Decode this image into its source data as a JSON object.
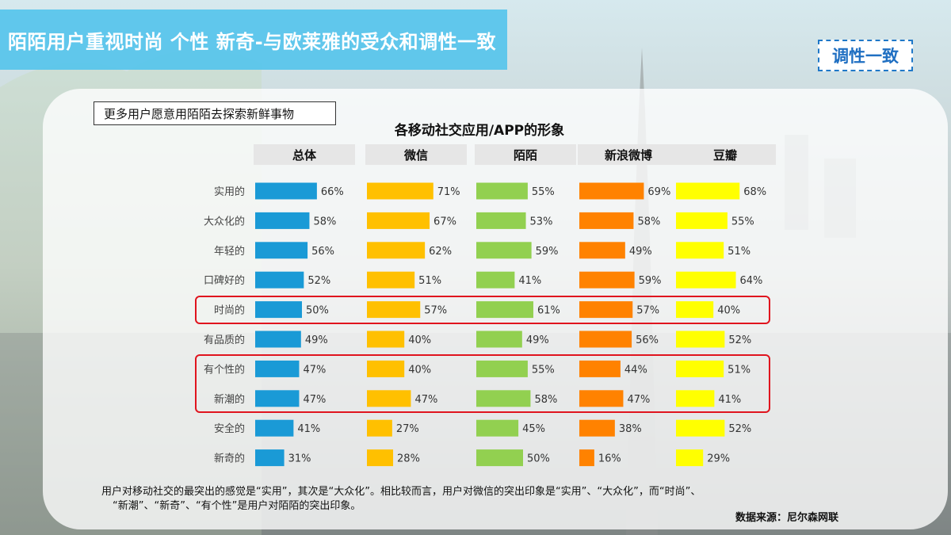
{
  "header": {
    "title": "陌陌用户重视时尚 个性 新奇-与欧莱雅的受众和调性一致",
    "tag": "调性一致"
  },
  "subtitle": "更多用户愿意用陌陌去探索新鲜事物",
  "chart_data": {
    "type": "bar",
    "title": "各移动社交应用/APP的形象",
    "categories": [
      "实用的",
      "大众化的",
      "年轻的",
      "口碑好的",
      "时尚的",
      "有品质的",
      "有个性的",
      "新潮的",
      "安全的",
      "新奇的"
    ],
    "series": [
      {
        "name": "总体",
        "color": "#1a9ad6",
        "values": [
          66,
          58,
          56,
          52,
          50,
          49,
          47,
          47,
          41,
          31
        ]
      },
      {
        "name": "微信",
        "color": "#ffc000",
        "values": [
          71,
          67,
          62,
          51,
          57,
          40,
          40,
          47,
          27,
          28
        ]
      },
      {
        "name": "陌陌",
        "color": "#92d050",
        "values": [
          55,
          53,
          59,
          41,
          61,
          49,
          55,
          58,
          45,
          50
        ]
      },
      {
        "name": "新浪微博",
        "color": "#ff8200",
        "values": [
          69,
          58,
          49,
          59,
          57,
          56,
          44,
          47,
          38,
          16
        ]
      },
      {
        "name": "豆瓣",
        "color": "#ffff00",
        "values": [
          68,
          55,
          51,
          64,
          40,
          52,
          51,
          41,
          52,
          29
        ]
      }
    ],
    "value_suffix": "%",
    "highlighted_categories": [
      "时尚的",
      "有个性的",
      "新潮的"
    ]
  },
  "footnote": {
    "line1": "用户对移动社交的最突出的感觉是“实用”，其次是“大众化”。相比较而言，用户对微信的突出印象是“实用”、“大众化”，而“时尚”、",
    "line2": "“新潮”、“新奇”、“有个性”是用户对陌陌的突出印象。"
  },
  "source": "数据来源：尼尔森网联"
}
